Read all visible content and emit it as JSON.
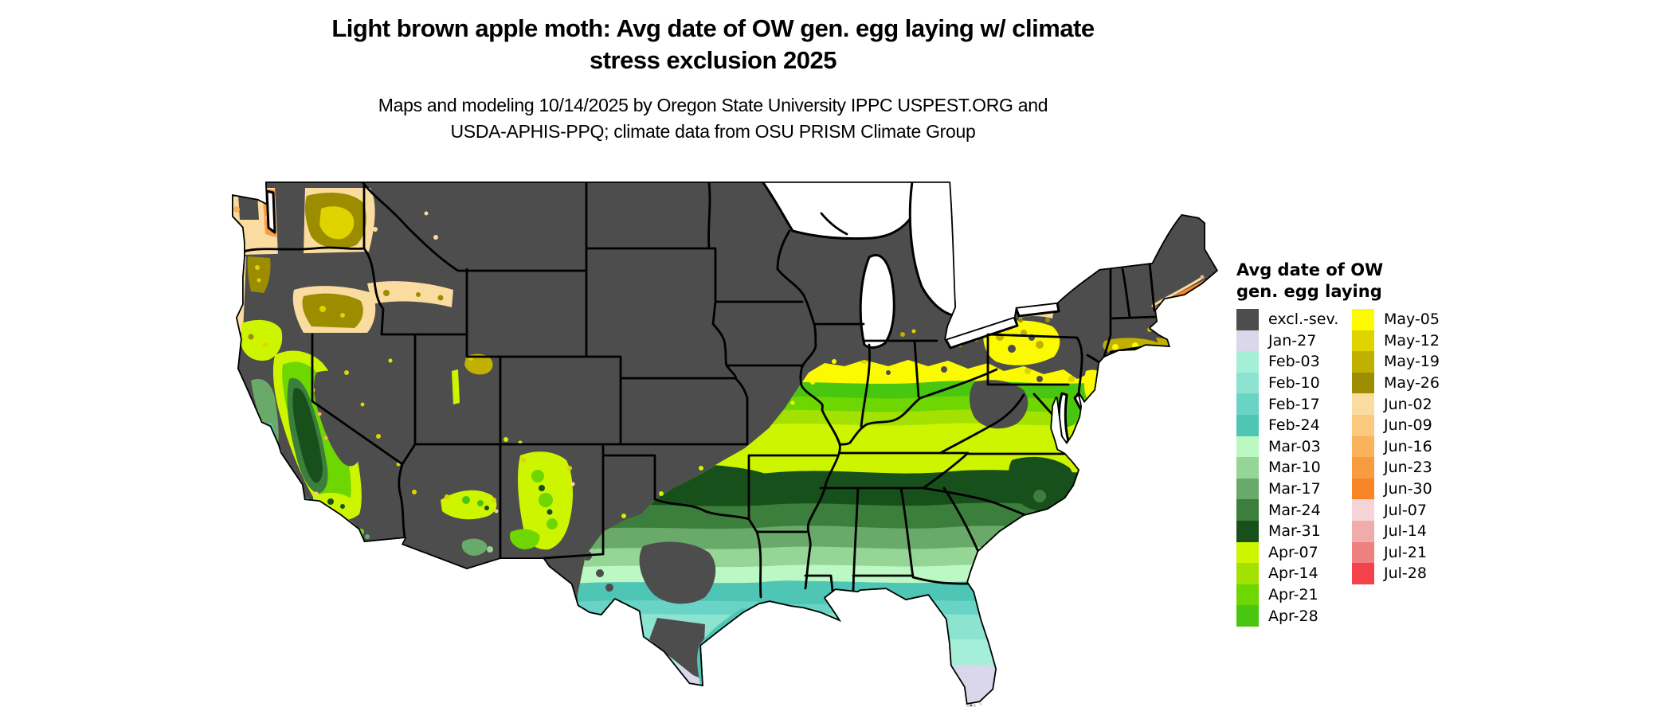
{
  "title": {
    "line1": "Light brown apple moth: Avg date of OW gen. egg laying w/ climate",
    "line2": "stress exclusion 2025"
  },
  "subtitle": {
    "line1": "Maps and modeling 10/14/2025 by Oregon State University IPPC USPEST.ORG and",
    "line2": "USDA-APHIS-PPQ; climate data from OSU PRISM Climate Group"
  },
  "legend": {
    "title_line1": "Avg date of OW",
    "title_line2": "gen. egg laying",
    "column1": [
      {
        "label": "excl.-sev.",
        "color": "#4D4D4D"
      },
      {
        "label": "Jan-27",
        "color": "#DBD7EA"
      },
      {
        "label": "Feb-03",
        "color": "#A5EFD9"
      },
      {
        "label": "Feb-10",
        "color": "#8CE3D0"
      },
      {
        "label": "Feb-17",
        "color": "#69D3C6"
      },
      {
        "label": "Feb-24",
        "color": "#4FC6B5"
      },
      {
        "label": "Mar-03",
        "color": "#BCF8C3"
      },
      {
        "label": "Mar-10",
        "color": "#95D596"
      },
      {
        "label": "Mar-17",
        "color": "#69A96A"
      },
      {
        "label": "Mar-24",
        "color": "#3C7E3C"
      },
      {
        "label": "Mar-31",
        "color": "#17501B"
      },
      {
        "label": "Apr-07",
        "color": "#CDF500"
      },
      {
        "label": "Apr-14",
        "color": "#A3E200"
      },
      {
        "label": "Apr-21",
        "color": "#6ED600"
      },
      {
        "label": "Apr-28",
        "color": "#49C610"
      }
    ],
    "column2": [
      {
        "label": "May-05",
        "color": "#FCFA00"
      },
      {
        "label": "May-12",
        "color": "#DFD300"
      },
      {
        "label": "May-19",
        "color": "#C0B000"
      },
      {
        "label": "May-26",
        "color": "#9C8D00"
      },
      {
        "label": "Jun-02",
        "color": "#FBDCA0"
      },
      {
        "label": "Jun-09",
        "color": "#FBC97E"
      },
      {
        "label": "Jun-16",
        "color": "#FAB25C"
      },
      {
        "label": "Jun-23",
        "color": "#F99B41"
      },
      {
        "label": "Jun-30",
        "color": "#F88525"
      },
      {
        "label": "Jul-07",
        "color": "#F5D4D6"
      },
      {
        "label": "Jul-14",
        "color": "#F1ABAB"
      },
      {
        "label": "Jul-21",
        "color": "#EF8080"
      },
      {
        "label": "Jul-28",
        "color": "#F4424A"
      }
    ]
  },
  "map": {
    "region": "Contiguous United States",
    "base_excluded_color": "#4D4D4D",
    "background_color": "#FFFFFF",
    "border_color": "#000000"
  }
}
